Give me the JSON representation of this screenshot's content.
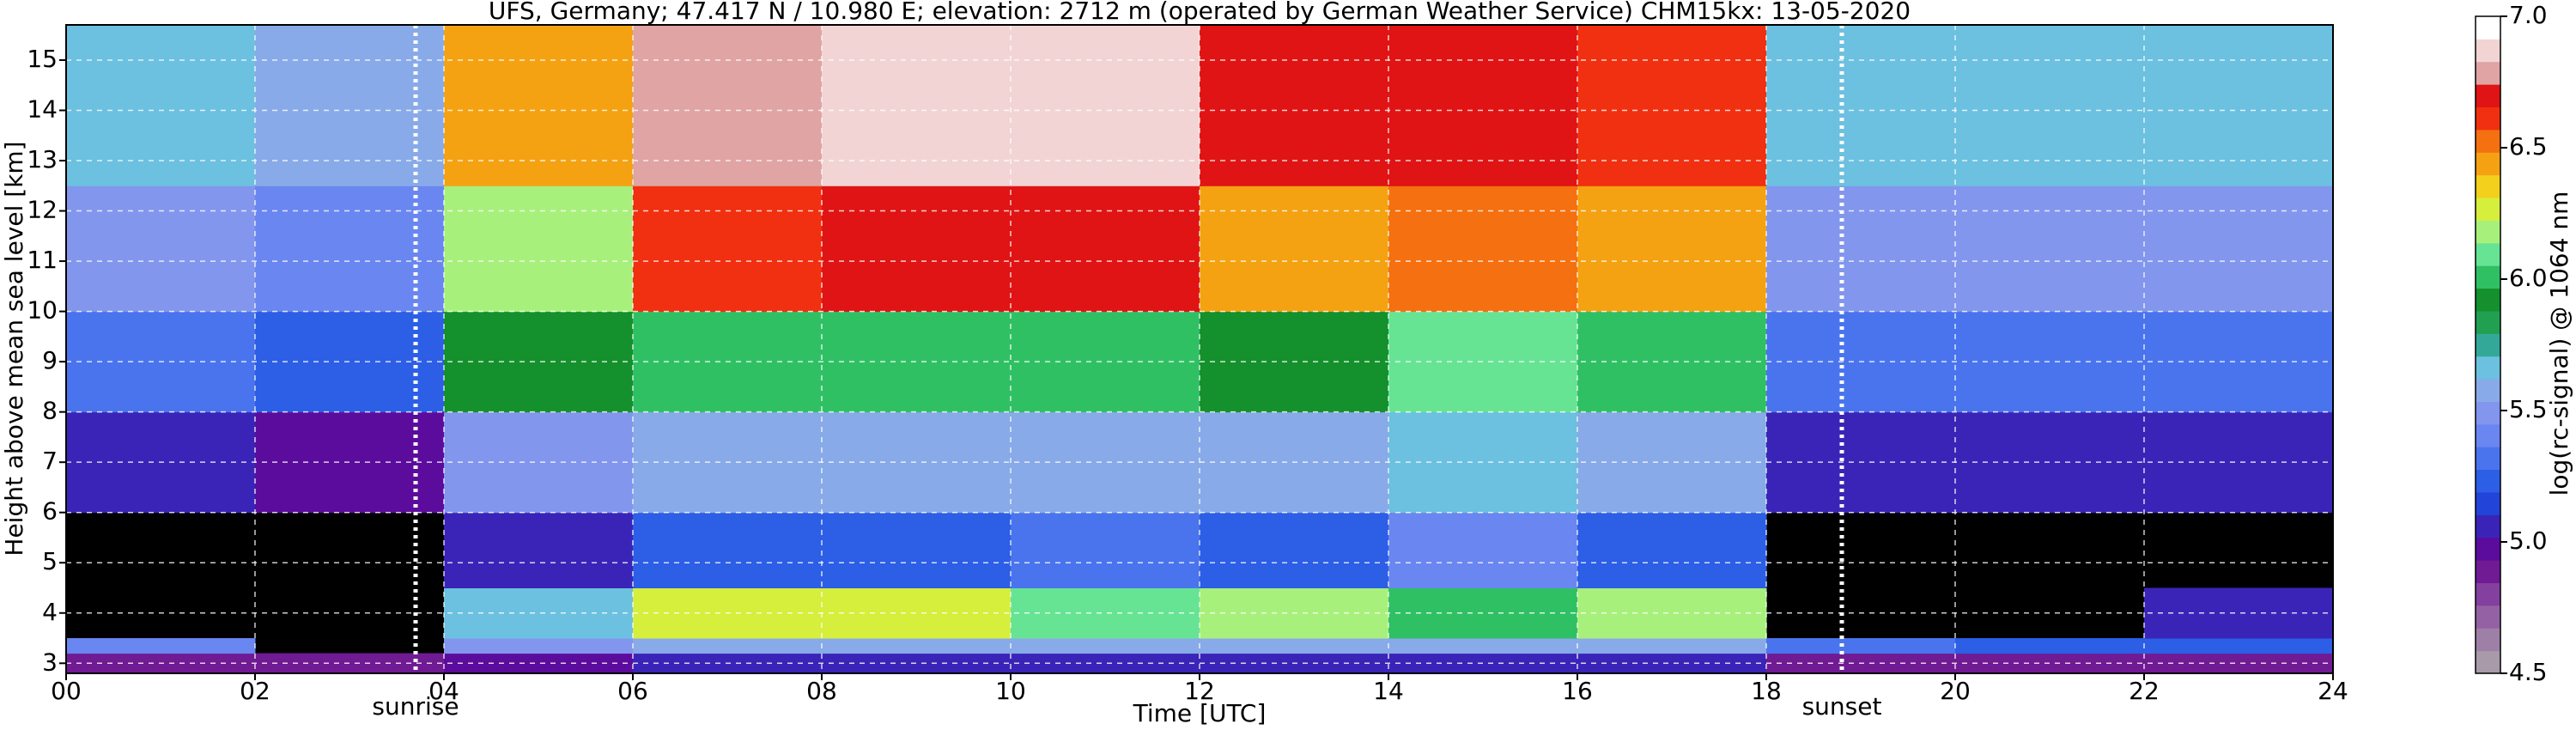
{
  "chart_data": {
    "type": "heatmap",
    "title": "UFS, Germany; 47.417 N / 10.980 E; elevation: 2712 m  (operated by German Weather Service)    CHM15kx: 13-05-2020",
    "x_label": "Time [UTC]",
    "y_label": "Height above mean sea level [km]",
    "colorbar_label": "log(rc-signal) @ 1064 nm",
    "xlim": [
      0,
      24
    ],
    "xticks": [
      {
        "value": 0,
        "label": "00"
      },
      {
        "value": 2,
        "label": "02"
      },
      {
        "value": 4,
        "label": "04"
      },
      {
        "value": 6,
        "label": "06"
      },
      {
        "value": 8,
        "label": "08"
      },
      {
        "value": 10,
        "label": "10"
      },
      {
        "value": 12,
        "label": "12"
      },
      {
        "value": 14,
        "label": "14"
      },
      {
        "value": 16,
        "label": "16"
      },
      {
        "value": 18,
        "label": "18"
      },
      {
        "value": 20,
        "label": "20"
      },
      {
        "value": 22,
        "label": "22"
      },
      {
        "value": 24,
        "label": "24"
      }
    ],
    "ylim": [
      2.8,
      15.7
    ],
    "yticks": [
      3,
      4,
      5,
      6,
      7,
      8,
      9,
      10,
      11,
      12,
      13,
      14,
      15
    ],
    "clim": [
      4.5,
      7.0
    ],
    "cticks": [
      {
        "value": 4.5,
        "label": "4.5"
      },
      {
        "value": 5.0,
        "label": "5.0"
      },
      {
        "value": 5.5,
        "label": "5.5"
      },
      {
        "value": 6.0,
        "label": "6.0"
      },
      {
        "value": 6.5,
        "label": "6.5"
      },
      {
        "value": 7.0,
        "label": "7.0"
      }
    ],
    "colormap": [
      "#a89aa8",
      "#9e80a6",
      "#9462a4",
      "#84409e",
      "#701a94",
      "#5c0c9c",
      "#3a24b8",
      "#2244d8",
      "#2c5ee6",
      "#4a74ee",
      "#6a86f0",
      "#8296ee",
      "#88aae8",
      "#6cc0e0",
      "#34a898",
      "#20a050",
      "#14902c",
      "#30c064",
      "#66e494",
      "#a8f07c",
      "#d6ee3c",
      "#f2d01c",
      "#f4a212",
      "#f47010",
      "#f03010",
      "#e01414",
      "#e0a4a4",
      "#f2d4d4",
      "#ffffff"
    ],
    "grid": true,
    "x_edges": [
      0,
      2,
      4,
      6,
      8,
      10,
      12,
      14,
      16,
      18,
      20,
      22,
      24
    ],
    "y_edges": [
      2.8,
      3.2,
      3.5,
      4.5,
      6,
      8,
      10,
      12.5,
      15.7
    ],
    "z": [
      [
        4.9,
        4.9,
        5.0,
        5.1,
        5.1,
        5.1,
        5.1,
        5.1,
        5.1,
        4.9,
        4.9,
        4.9
      ],
      [
        5.4,
        null,
        5.5,
        5.6,
        5.6,
        5.6,
        5.6,
        5.6,
        5.6,
        5.3,
        5.2,
        5.2
      ],
      [
        null,
        null,
        5.7,
        6.3,
        6.3,
        6.1,
        6.2,
        6.0,
        6.2,
        null,
        null,
        5.1
      ],
      [
        null,
        null,
        5.1,
        5.2,
        5.2,
        5.3,
        5.2,
        5.4,
        5.2,
        null,
        null,
        null
      ],
      [
        5.1,
        5.0,
        5.5,
        5.6,
        5.6,
        5.6,
        5.6,
        5.7,
        5.6,
        5.1,
        5.1,
        5.1
      ],
      [
        5.3,
        5.2,
        5.9,
        6.0,
        6.0,
        6.0,
        5.9,
        6.1,
        6.0,
        5.3,
        5.3,
        5.3
      ],
      [
        5.5,
        5.4,
        6.2,
        6.6,
        6.7,
        6.7,
        6.4,
        6.5,
        6.4,
        5.5,
        5.5,
        5.5
      ],
      [
        5.7,
        5.6,
        6.4,
        6.8,
        6.9,
        6.9,
        6.7,
        6.7,
        6.6,
        5.7,
        5.7,
        5.7
      ]
    ],
    "annotations": [
      {
        "label": "sunrise",
        "x": 3.7
      },
      {
        "label": "sunset",
        "x": 18.8
      }
    ]
  }
}
